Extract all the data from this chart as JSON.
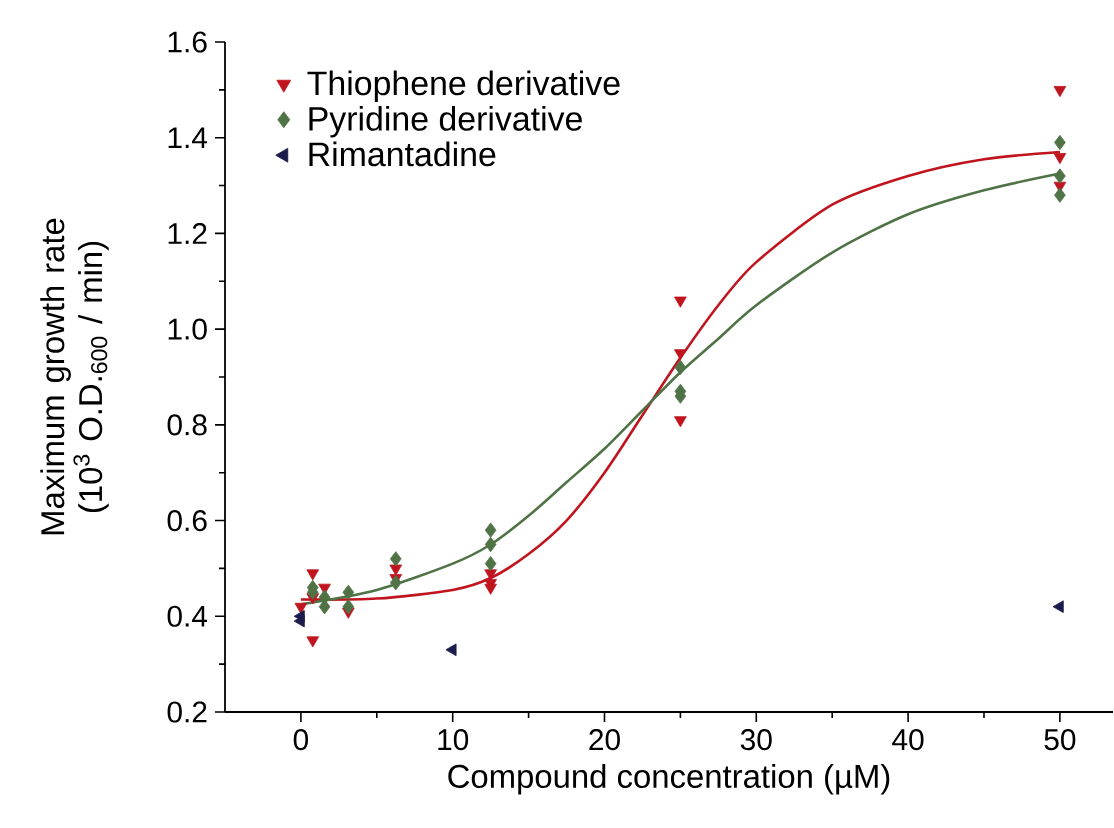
{
  "chart_data": {
    "type": "scatter",
    "xlabel": "Compound concentration (µM)",
    "ylabel": "Maximum growth rate (10$^{3}$ O.D.$_{600}$ / min)",
    "xlim": [
      -5,
      53.5
    ],
    "ylim": [
      0.2,
      1.6
    ],
    "xticks": [
      0,
      10,
      20,
      30,
      40,
      50
    ],
    "yticks": [
      0.2,
      0.4,
      0.6,
      0.8,
      {
        "value": 1.0,
        "label": "1.0"
      },
      1.2,
      1.4,
      1.6
    ],
    "grid": false,
    "legend": "top left",
    "series": [
      {
        "name": "Thiophene derivative",
        "color": "#c0141e",
        "marker": "triangle",
        "x": [
          0,
          0.78,
          0.78,
          0.78,
          1.56,
          3.125,
          6.25,
          6.25,
          12.5,
          12.5,
          12.5,
          25,
          25,
          25,
          50,
          50,
          50
        ],
        "values": [
          0.42,
          0.49,
          0.35,
          0.44,
          0.46,
          0.41,
          0.5,
          0.48,
          0.49,
          0.47,
          0.46,
          1.06,
          0.95,
          0.81,
          1.5,
          1.36,
          1.3
        ]
      },
      {
        "name": "Pyridine derivative",
        "color": "#4f7346",
        "marker": "diamond",
        "x": [
          0.78,
          0.78,
          1.56,
          1.56,
          3.125,
          3.125,
          6.25,
          6.25,
          12.5,
          12.5,
          12.5,
          25,
          25,
          25,
          50,
          50,
          50
        ],
        "values": [
          0.46,
          0.45,
          0.44,
          0.42,
          0.45,
          0.42,
          0.52,
          0.47,
          0.58,
          0.55,
          0.51,
          0.92,
          0.87,
          0.86,
          1.39,
          1.32,
          1.28
        ]
      },
      {
        "name": "Rimantadine",
        "color": "#1c1c4c",
        "marker": "triangle",
        "x": [
          0,
          0,
          10,
          50
        ],
        "values": [
          0.4,
          0.39,
          0.33,
          0.42
        ]
      },
      {
        "type": "line",
        "color": "#c0141e",
        "marker": "none",
        "line_style": "solid",
        "x": [
          0,
          5,
          10,
          12.5,
          15,
          17.5,
          20,
          22.5,
          25,
          27.5,
          30,
          35,
          40,
          45,
          50
        ],
        "values": [
          0.435,
          0.437,
          0.455,
          0.48,
          0.53,
          0.6,
          0.7,
          0.82,
          0.94,
          1.05,
          1.14,
          1.26,
          1.32,
          1.355,
          1.37
        ]
      },
      {
        "type": "line",
        "color": "#4f7346",
        "marker": "none",
        "line_style": "solid",
        "x": [
          0,
          5,
          10,
          12.5,
          15,
          17.5,
          20,
          22.5,
          25,
          27.5,
          30,
          35,
          40,
          45,
          50
        ],
        "values": [
          0.425,
          0.455,
          0.51,
          0.55,
          0.61,
          0.68,
          0.75,
          0.83,
          0.91,
          0.98,
          1.05,
          1.16,
          1.24,
          1.29,
          1.325
        ]
      }
    ]
  }
}
